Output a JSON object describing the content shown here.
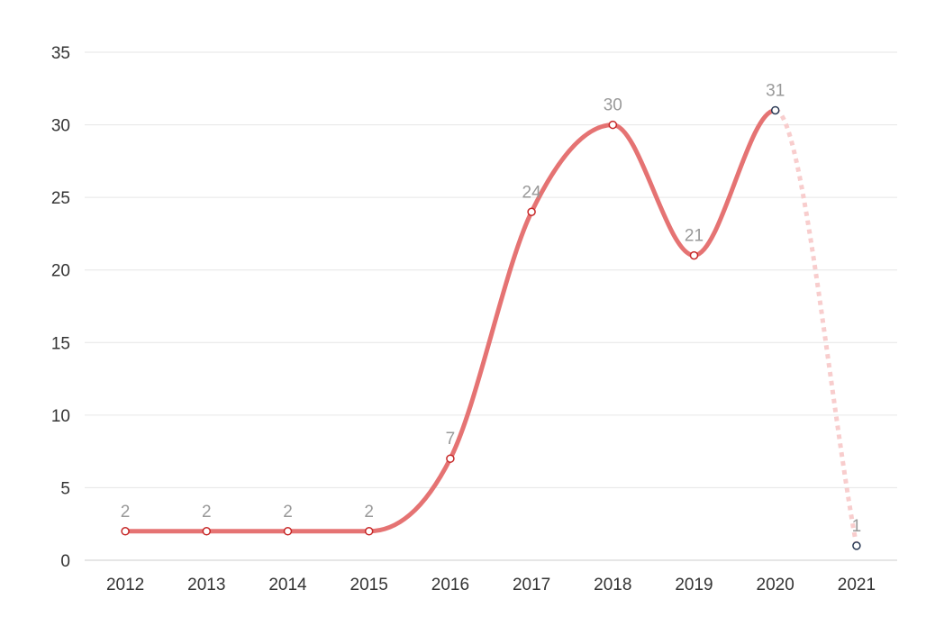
{
  "chart_data": {
    "type": "line",
    "title": "",
    "xlabel": "",
    "ylabel": "",
    "x": [
      "2012",
      "2013",
      "2014",
      "2015",
      "2016",
      "2017",
      "2018",
      "2019",
      "2020",
      "2021"
    ],
    "series": [
      {
        "values": [
          2,
          2,
          2,
          2,
          7,
          24,
          30,
          21,
          31,
          1
        ],
        "color": "#e57373",
        "partial_color": "#f8cdcd",
        "marker_color": "#c62828",
        "partial_marker_color": "#2b3a55",
        "partial_from_index": 8,
        "smooth": true,
        "data_labels": [
          "2",
          "2",
          "2",
          "2",
          "7",
          "24",
          "30",
          "21",
          "31",
          "1"
        ]
      }
    ],
    "ylim": [
      0,
      35
    ],
    "y_ticks": [
      "0",
      "5",
      "10",
      "15",
      "20",
      "25",
      "30",
      "35"
    ],
    "grid": true,
    "gridline_color": "#e6e6e6",
    "legend": "none"
  }
}
